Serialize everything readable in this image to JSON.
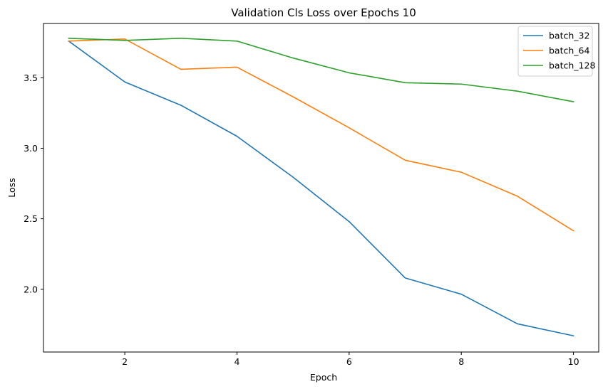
{
  "chart_data": {
    "type": "line",
    "title": "Validation Cls Loss over Epochs 10",
    "xlabel": "Epoch",
    "ylabel": "Loss",
    "x": [
      1,
      2,
      3,
      4,
      5,
      6,
      7,
      8,
      9,
      10
    ],
    "xlim": [
      0.55,
      10.45
    ],
    "ylim": [
      1.555,
      3.885
    ],
    "xticks": [
      2,
      4,
      6,
      8,
      10
    ],
    "yticks": [
      2.0,
      2.5,
      3.0,
      3.5
    ],
    "xtick_labels": [
      "2",
      "4",
      "6",
      "8",
      "10"
    ],
    "ytick_labels": [
      "2.0",
      "2.5",
      "3.0",
      "3.5"
    ],
    "grid": false,
    "legend_position": "top-right",
    "series": [
      {
        "name": "batch_32",
        "color": "#1f77b4",
        "values": [
          3.76,
          3.47,
          3.305,
          3.085,
          2.795,
          2.48,
          2.08,
          1.965,
          1.755,
          1.67
        ]
      },
      {
        "name": "batch_64",
        "color": "#ff7f0e",
        "values": [
          3.76,
          3.775,
          3.56,
          3.575,
          3.365,
          3.145,
          2.915,
          2.83,
          2.66,
          2.415
        ]
      },
      {
        "name": "batch_128",
        "color": "#2ca02c",
        "values": [
          3.78,
          3.765,
          3.78,
          3.76,
          3.64,
          3.535,
          3.465,
          3.455,
          3.405,
          3.33
        ]
      }
    ]
  }
}
